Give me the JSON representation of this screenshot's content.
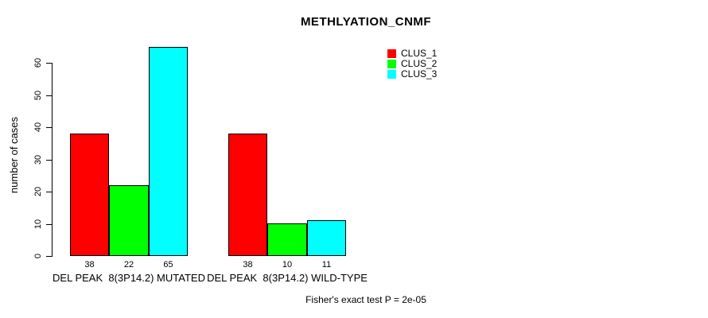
{
  "title": "METHLYATION_CNMF",
  "footer": "Fisher's exact test P = 2e-05",
  "y_axis": {
    "label": "number of cases"
  },
  "legend": {
    "position": "top-right",
    "items": [
      {
        "label": "CLUS_1",
        "color": "#FF0000"
      },
      {
        "label": "CLUS_2",
        "color": "#00FF00"
      },
      {
        "label": "CLUS_3",
        "color": "#00FFFF"
      }
    ]
  },
  "chart_data": {
    "type": "bar",
    "title": "METHLYATION_CNMF",
    "categories": [
      "DEL PEAK  8(3P14.2) MUTATED",
      "DEL PEAK  8(3P14.2) WILD-TYPE"
    ],
    "series": [
      {
        "name": "CLUS_1",
        "color": "#FF0000",
        "values": [
          38,
          38
        ]
      },
      {
        "name": "CLUS_2",
        "color": "#00FF00",
        "values": [
          22,
          10
        ]
      },
      {
        "name": "CLUS_3",
        "color": "#00FFFF",
        "values": [
          65,
          11
        ]
      }
    ],
    "bar_value_labels": [
      [
        38,
        22,
        65
      ],
      [
        38,
        10,
        11
      ]
    ],
    "xlabel": "",
    "ylabel": "number of cases",
    "ylim": [
      0,
      60
    ],
    "yticks": [
      0,
      10,
      20,
      30,
      40,
      50,
      60
    ],
    "grid": false,
    "bar_border_color": "#000000",
    "legend_position": "top-right",
    "annotation": "Fisher's exact test P = 2e-05"
  }
}
